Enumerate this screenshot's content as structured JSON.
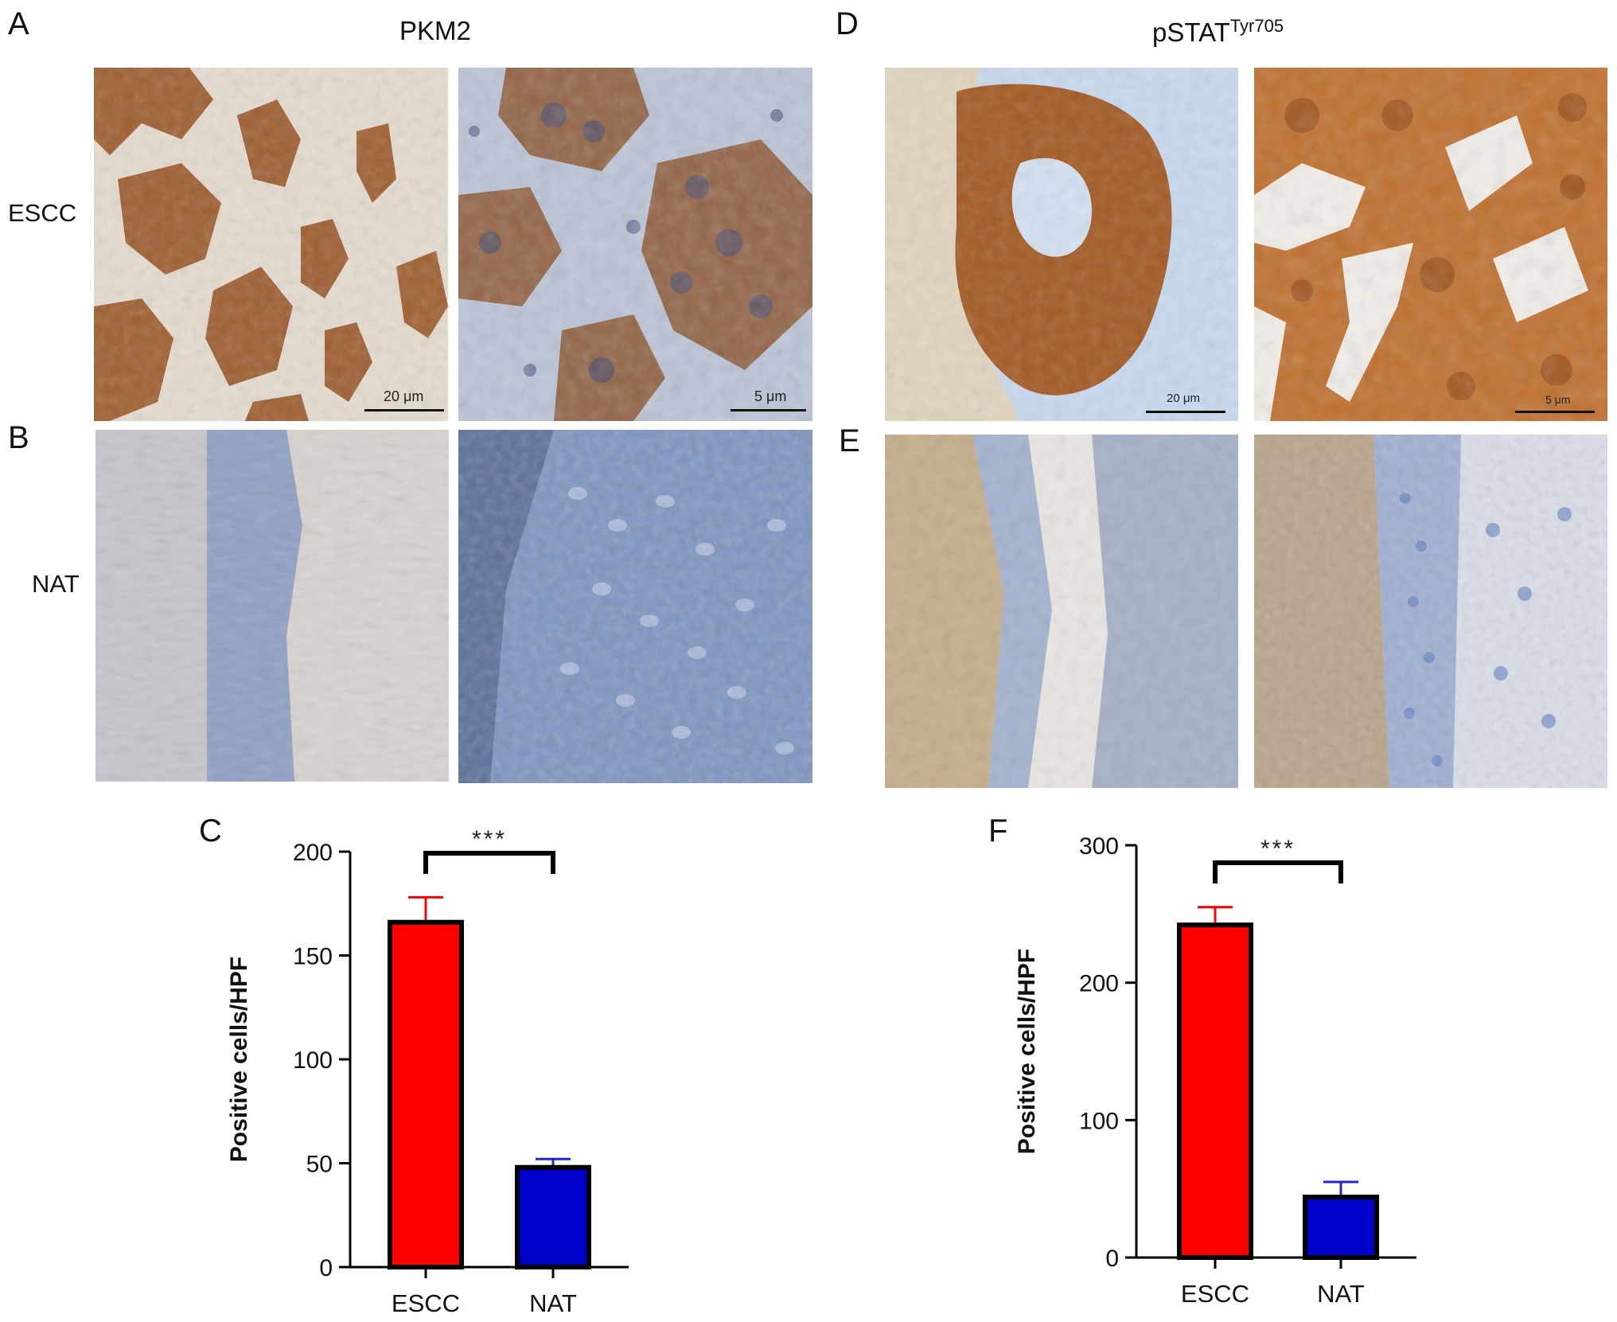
{
  "panel_labels": {
    "A": "A",
    "B": "B",
    "C": "C",
    "D": "D",
    "E": "E",
    "F": "F"
  },
  "titles": {
    "left": "PKM2",
    "right_main": "pSTAT",
    "right_sup": "Tyr705"
  },
  "row_labels": {
    "top": "ESCC",
    "bottom": "NAT"
  },
  "scale_labels": {
    "a_low": "20 μm",
    "a_high": "5 μm",
    "d_low": "20 μm",
    "d_high": "5 μm"
  },
  "colors": {
    "escc_bar": "#ff0000",
    "nat_bar": "#0000cc",
    "escc_error": "#ff0000",
    "nat_error": "#2222dd",
    "stain_brown": "#a0561f",
    "hematoxylin_blue": "#7f93bf"
  },
  "chart_data": [
    {
      "panel": "C",
      "type": "bar",
      "categories": [
        "ESCC",
        "NAT"
      ],
      "values": [
        166,
        48
      ],
      "errors": [
        12,
        4
      ],
      "ylabel": "Positive cells/HPF",
      "xlabel": "",
      "ylim": [
        0,
        200
      ],
      "yticks": [
        0,
        50,
        100,
        150,
        200
      ],
      "significance": "***",
      "grid": false,
      "legend": "none"
    },
    {
      "panel": "F",
      "type": "bar",
      "categories": [
        "ESCC",
        "NAT"
      ],
      "values": [
        242,
        44
      ],
      "errors": [
        13,
        11
      ],
      "ylabel": "Positive cells/HPF",
      "xlabel": "",
      "ylim": [
        0,
        300
      ],
      "yticks": [
        0,
        100,
        200,
        300
      ],
      "significance": "***",
      "grid": false,
      "legend": "none"
    }
  ]
}
